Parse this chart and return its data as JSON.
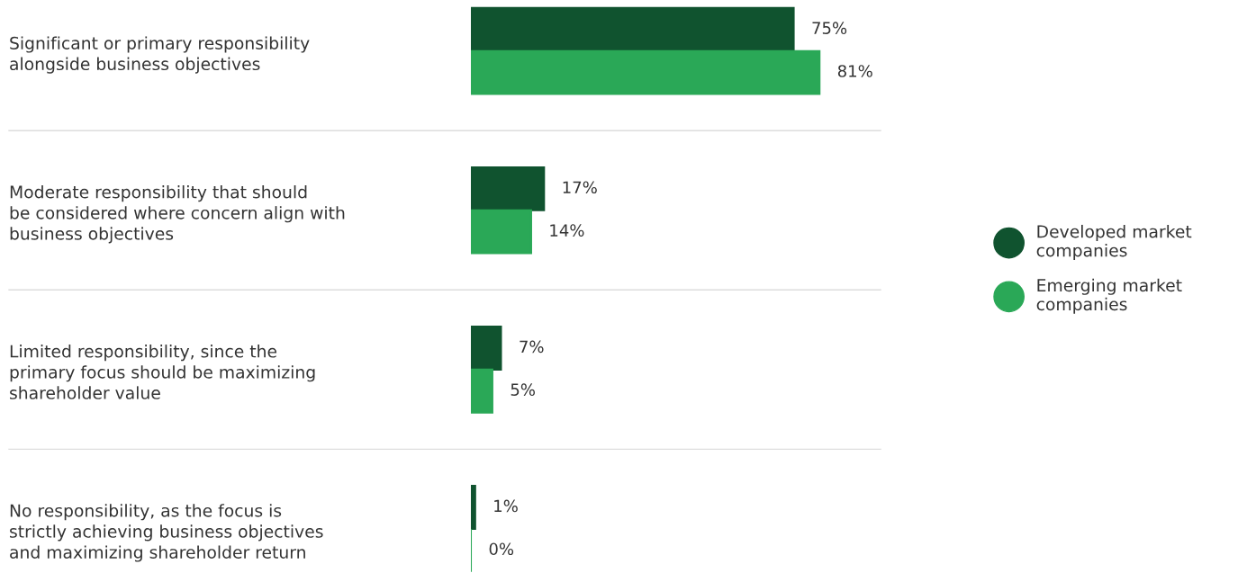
{
  "chart_data": {
    "type": "bar",
    "orientation": "horizontal",
    "categories": [
      "Significant or primary responsibility\nalongside business objectives",
      "Moderate responsibility that should\nbe considered where concern align with\nbusiness objectives",
      "Limited responsibility, since the\nprimary focus should be maximizing\nshareholder value",
      "No responsibility, as the focus is\nstrictly achieving business objectives\nand maximizing shareholder return"
    ],
    "series": [
      {
        "name": "Developed market\ncompanies",
        "color": "#10532f",
        "values": [
          75,
          17,
          7,
          1
        ],
        "value_labels": [
          "75%",
          "17%",
          "7%",
          "1%"
        ]
      },
      {
        "name": "Emerging market\ncompanies",
        "color": "#2aa857",
        "values": [
          81,
          14,
          5,
          0
        ],
        "value_labels": [
          "81%",
          "14%",
          "5%",
          "0%"
        ]
      }
    ],
    "grid": "y",
    "legend": "right",
    "marker": "circle",
    "tick_labels": "y"
  }
}
